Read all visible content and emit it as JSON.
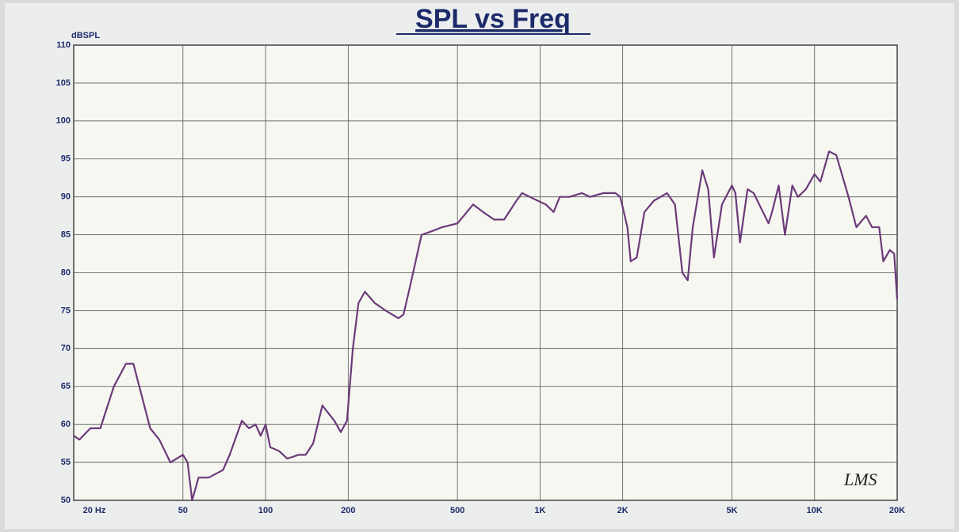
{
  "chart_data": {
    "type": "line",
    "title": "SPL vs Freq",
    "y_label": "dBSPL",
    "annotation": "LMS",
    "log_x": true,
    "grid": true,
    "xlim": [
      20,
      20000
    ],
    "ylim": [
      50,
      110
    ],
    "xticks": [
      {
        "value": 20,
        "label": "20 Hz"
      },
      50,
      100,
      200,
      500,
      {
        "value": 1000,
        "label": "1K"
      },
      {
        "value": 2000,
        "label": "2K"
      },
      {
        "value": 5000,
        "label": "5K"
      },
      {
        "value": 10000,
        "label": "10K"
      },
      {
        "value": 20000,
        "label": "20K"
      }
    ],
    "yticks": [
      50,
      55,
      60,
      65,
      70,
      75,
      80,
      85,
      90,
      95,
      100,
      105,
      110
    ],
    "series": [
      {
        "color": "#6b3a7a",
        "x": [
          20,
          21,
          23,
          25,
          28,
          31,
          33,
          38,
          41,
          45,
          50,
          52,
          54,
          57,
          62,
          70,
          74,
          82,
          87,
          92,
          96,
          100,
          104,
          112,
          120,
          132,
          140,
          149,
          161,
          178,
          188,
          198,
          208,
          218,
          230,
          250,
          274,
          305,
          318,
          335,
          370,
          405,
          440,
          500,
          570,
          620,
          680,
          740,
          820,
          860,
          980,
          1050,
          1120,
          1180,
          1280,
          1420,
          1520,
          1700,
          1880,
          1960,
          2080,
          2140,
          2250,
          2400,
          2600,
          2900,
          3100,
          3300,
          3450,
          3600,
          3900,
          4100,
          4300,
          4600,
          5000,
          5150,
          5350,
          5700,
          6000,
          6800,
          7000,
          7400,
          7800,
          8300,
          8700,
          9300,
          10000,
          10500,
          11300,
          12000,
          13300,
          14200,
          15400,
          16200,
          17200,
          17800,
          18800,
          19500,
          20000
        ],
        "values": [
          58.5,
          58,
          59.5,
          59.5,
          65,
          68,
          68,
          59.5,
          58,
          55,
          56,
          55,
          50,
          53,
          53,
          54,
          56,
          60.5,
          59.5,
          60,
          58.5,
          60,
          57,
          56.5,
          55.5,
          56,
          56,
          57.5,
          62.5,
          60.5,
          59,
          60.5,
          70,
          76,
          77.5,
          76,
          75,
          74,
          74.5,
          78,
          85,
          85.5,
          86,
          86.5,
          89,
          88,
          87,
          87,
          89.5,
          90.5,
          89.5,
          89,
          88,
          90,
          90,
          90.5,
          90,
          90.5,
          90.5,
          90,
          86,
          81.5,
          82,
          88,
          89.5,
          90.5,
          89,
          80,
          79,
          86,
          93.5,
          91,
          82,
          89,
          91.5,
          90.5,
          84,
          91,
          90.5,
          86.5,
          88,
          91.5,
          85,
          91.5,
          90,
          91,
          93,
          92,
          96,
          95.5,
          90,
          86,
          87.5,
          86,
          86,
          81.5,
          83,
          82.5,
          76.5
        ]
      }
    ]
  }
}
